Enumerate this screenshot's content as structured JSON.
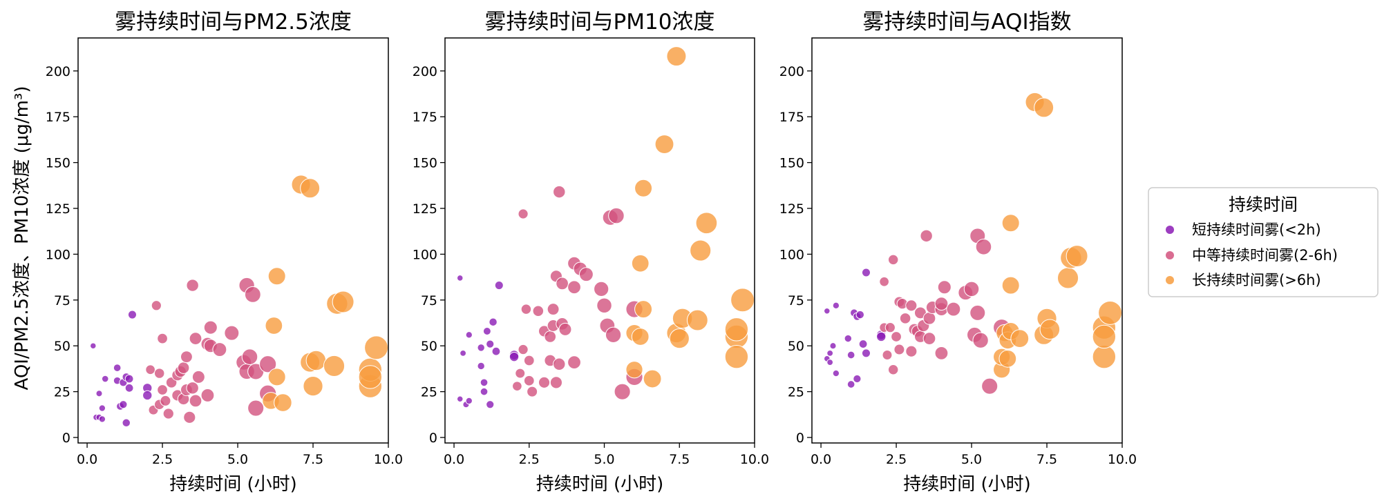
{
  "colors": {
    "short": "#8B1BB5",
    "medium": "#D2527E",
    "long": "#F79C3E"
  },
  "ylabel": "AQI/PM2.5浓度、PM10浓度 (μg/m³)",
  "legend": {
    "title": "持续时间",
    "items": [
      {
        "label": "短持续时间雾(<2h)",
        "color_key": "short"
      },
      {
        "label": "中等持续时间雾(2-6h)",
        "color_key": "medium"
      },
      {
        "label": "长持续时间雾(>6h)",
        "color_key": "long"
      }
    ]
  },
  "chart_data": [
    {
      "type": "scatter",
      "title": "雾持续时间与PM2.5浓度",
      "xlabel": "持续时间 (小时)",
      "xlim": [
        -0.3,
        10.0
      ],
      "ylim": [
        -3,
        218
      ],
      "xticks": [
        "0.0",
        "2.5",
        "5.0",
        "7.5",
        "10.0"
      ],
      "xtick_values": [
        0,
        2.5,
        5,
        7.5,
        10
      ],
      "yticks": [
        "0",
        "25",
        "50",
        "75",
        "100",
        "125",
        "150",
        "175",
        "200"
      ],
      "ytick_values": [
        0,
        25,
        50,
        75,
        100,
        125,
        150,
        175,
        200
      ],
      "series": [
        {
          "name": "短持续时间雾(<2h)",
          "color_key": "short",
          "points": [
            [
              0.2,
              50
            ],
            [
              0.3,
              11
            ],
            [
              0.4,
              11
            ],
            [
              0.4,
              24
            ],
            [
              0.5,
              10
            ],
            [
              0.5,
              16
            ],
            [
              0.6,
              32
            ],
            [
              1.0,
              38
            ],
            [
              1.0,
              31
            ],
            [
              1.1,
              17
            ],
            [
              1.2,
              18
            ],
            [
              1.2,
              30
            ],
            [
              1.3,
              8
            ],
            [
              1.3,
              33
            ],
            [
              1.4,
              32
            ],
            [
              1.4,
              27
            ],
            [
              1.5,
              67
            ],
            [
              2.0,
              27
            ],
            [
              2.0,
              23
            ]
          ]
        },
        {
          "name": "中等持续时间雾(2-6h)",
          "color_key": "medium",
          "points": [
            [
              2.1,
              37
            ],
            [
              2.2,
              15
            ],
            [
              2.3,
              72
            ],
            [
              2.4,
              18
            ],
            [
              2.4,
              35
            ],
            [
              2.5,
              54
            ],
            [
              2.5,
              26
            ],
            [
              2.6,
              20
            ],
            [
              2.7,
              13
            ],
            [
              2.8,
              30
            ],
            [
              3.0,
              23
            ],
            [
              3.0,
              34
            ],
            [
              3.1,
              36
            ],
            [
              3.2,
              21
            ],
            [
              3.2,
              38
            ],
            [
              3.3,
              44
            ],
            [
              3.3,
              26
            ],
            [
              3.4,
              11
            ],
            [
              3.5,
              83
            ],
            [
              3.5,
              27
            ],
            [
              3.6,
              20
            ],
            [
              3.7,
              33
            ],
            [
              3.6,
              54
            ],
            [
              4.0,
              51
            ],
            [
              4.0,
              23
            ],
            [
              4.1,
              60
            ],
            [
              4.1,
              50
            ],
            [
              4.4,
              48
            ],
            [
              4.8,
              57
            ],
            [
              5.2,
              41
            ],
            [
              5.3,
              83
            ],
            [
              5.3,
              36
            ],
            [
              5.4,
              44
            ],
            [
              5.5,
              78
            ],
            [
              5.6,
              16
            ],
            [
              5.6,
              36
            ],
            [
              6.0,
              40
            ],
            [
              6.0,
              24
            ]
          ]
        },
        {
          "name": "长持续时间雾(>6h)",
          "color_key": "long",
          "points": [
            [
              6.1,
              20
            ],
            [
              6.2,
              61
            ],
            [
              6.3,
              88
            ],
            [
              6.3,
              33
            ],
            [
              6.5,
              19
            ],
            [
              7.1,
              138
            ],
            [
              7.4,
              136
            ],
            [
              7.4,
              41
            ],
            [
              7.5,
              28
            ],
            [
              7.6,
              42
            ],
            [
              8.2,
              39
            ],
            [
              8.3,
              73
            ],
            [
              8.5,
              74
            ],
            [
              9.4,
              28
            ],
            [
              9.4,
              37
            ],
            [
              9.4,
              33
            ],
            [
              9.6,
              49
            ]
          ]
        }
      ]
    },
    {
      "type": "scatter",
      "title": "雾持续时间与PM10浓度",
      "xlabel": "持续时间 (小时)",
      "xlim": [
        -0.3,
        10.0
      ],
      "ylim": [
        -3,
        218
      ],
      "xticks": [
        "0.0",
        "2.5",
        "5.0",
        "7.5",
        "10.0"
      ],
      "xtick_values": [
        0,
        2.5,
        5,
        7.5,
        10
      ],
      "yticks": [
        "0",
        "25",
        "50",
        "75",
        "100",
        "125",
        "150",
        "175",
        "200"
      ],
      "ytick_values": [
        0,
        25,
        50,
        75,
        100,
        125,
        150,
        175,
        200
      ],
      "series": [
        {
          "name": "短持续时间雾(<2h)",
          "color_key": "short",
          "points": [
            [
              0.2,
              87
            ],
            [
              0.2,
              21
            ],
            [
              0.3,
              46
            ],
            [
              0.4,
              18
            ],
            [
              0.5,
              56
            ],
            [
              0.5,
              20
            ],
            [
              0.9,
              39
            ],
            [
              0.9,
              49
            ],
            [
              1.0,
              25
            ],
            [
              1.0,
              30
            ],
            [
              1.1,
              58
            ],
            [
              1.2,
              18
            ],
            [
              1.2,
              51
            ],
            [
              1.3,
              63
            ],
            [
              1.4,
              47
            ],
            [
              1.5,
              83
            ],
            [
              2.0,
              45
            ],
            [
              2.0,
              44
            ]
          ]
        },
        {
          "name": "中等持续时间雾(2-6h)",
          "color_key": "medium",
          "points": [
            [
              2.1,
              28
            ],
            [
              2.2,
              35
            ],
            [
              2.3,
              122
            ],
            [
              2.3,
              48
            ],
            [
              2.4,
              70
            ],
            [
              2.5,
              42
            ],
            [
              2.5,
              31
            ],
            [
              2.6,
              25
            ],
            [
              2.8,
              69
            ],
            [
              3.0,
              58
            ],
            [
              3.0,
              30
            ],
            [
              3.2,
              42
            ],
            [
              3.2,
              55
            ],
            [
              3.3,
              61
            ],
            [
              3.3,
              70
            ],
            [
              3.4,
              88
            ],
            [
              3.4,
              30
            ],
            [
              3.5,
              134
            ],
            [
              3.5,
              40
            ],
            [
              3.6,
              62
            ],
            [
              3.6,
              84
            ],
            [
              3.7,
              59
            ],
            [
              4.0,
              95
            ],
            [
              4.0,
              41
            ],
            [
              4.0,
              82
            ],
            [
              4.2,
              92
            ],
            [
              4.4,
              89
            ],
            [
              4.9,
              81
            ],
            [
              5.0,
              72
            ],
            [
              5.1,
              61
            ],
            [
              5.2,
              120
            ],
            [
              5.4,
              121
            ],
            [
              5.3,
              56
            ],
            [
              5.6,
              25
            ],
            [
              6.0,
              70
            ],
            [
              6.0,
              33
            ]
          ]
        },
        {
          "name": "长持续时间雾(>6h)",
          "color_key": "long",
          "points": [
            [
              6.0,
              57
            ],
            [
              6.0,
              37
            ],
            [
              6.2,
              95
            ],
            [
              6.2,
              55
            ],
            [
              6.3,
              136
            ],
            [
              6.3,
              70
            ],
            [
              6.6,
              32
            ],
            [
              7.0,
              160
            ],
            [
              7.4,
              208
            ],
            [
              7.4,
              57
            ],
            [
              7.5,
              54
            ],
            [
              7.6,
              65
            ],
            [
              8.2,
              102
            ],
            [
              8.1,
              64
            ],
            [
              8.4,
              117
            ],
            [
              9.4,
              55
            ],
            [
              9.4,
              44
            ],
            [
              9.4,
              59
            ],
            [
              9.6,
              75
            ]
          ]
        }
      ]
    },
    {
      "type": "scatter",
      "title": "雾持续时间与AQI指数",
      "xlabel": "持续时间 (小时)",
      "xlim": [
        -0.3,
        10.0
      ],
      "ylim": [
        -3,
        218
      ],
      "xticks": [
        "0.0",
        "2.5",
        "5.0",
        "7.5",
        "10.0"
      ],
      "xtick_values": [
        0,
        2.5,
        5,
        7.5,
        10
      ],
      "yticks": [
        "0",
        "25",
        "50",
        "75",
        "100",
        "125",
        "150",
        "175",
        "200"
      ],
      "ytick_values": [
        0,
        25,
        50,
        75,
        100,
        125,
        150,
        175,
        200
      ],
      "series": [
        {
          "name": "短持续时间雾(<2h)",
          "color_key": "short",
          "points": [
            [
              0.2,
              69
            ],
            [
              0.2,
              43
            ],
            [
              0.3,
              46
            ],
            [
              0.3,
              41
            ],
            [
              0.4,
              50
            ],
            [
              0.5,
              35
            ],
            [
              0.5,
              72
            ],
            [
              0.9,
              54
            ],
            [
              1.0,
              29
            ],
            [
              1.0,
              45
            ],
            [
              1.1,
              68
            ],
            [
              1.2,
              66
            ],
            [
              1.2,
              32
            ],
            [
              1.3,
              67
            ],
            [
              1.4,
              51
            ],
            [
              1.5,
              90
            ],
            [
              1.5,
              46
            ],
            [
              2.0,
              56
            ],
            [
              2.0,
              55
            ]
          ]
        },
        {
          "name": "中等持续时间雾(2-6h)",
          "color_key": "medium",
          "points": [
            [
              2.1,
              85
            ],
            [
              2.1,
              60
            ],
            [
              2.2,
              45
            ],
            [
              2.3,
              60
            ],
            [
              2.4,
              97
            ],
            [
              2.4,
              37
            ],
            [
              2.5,
              55
            ],
            [
              2.6,
              74
            ],
            [
              2.6,
              48
            ],
            [
              2.7,
              73
            ],
            [
              2.8,
              65
            ],
            [
              3.0,
              72
            ],
            [
              3.0,
              47
            ],
            [
              3.1,
              59
            ],
            [
              3.2,
              58
            ],
            [
              3.3,
              68
            ],
            [
              3.3,
              55
            ],
            [
              3.4,
              61
            ],
            [
              3.5,
              110
            ],
            [
              3.6,
              65
            ],
            [
              3.6,
              54
            ],
            [
              3.7,
              71
            ],
            [
              4.0,
              70
            ],
            [
              4.0,
              46
            ],
            [
              4.0,
              73
            ],
            [
              4.1,
              82
            ],
            [
              4.4,
              70
            ],
            [
              4.8,
              79
            ],
            [
              5.0,
              81
            ],
            [
              5.1,
              56
            ],
            [
              5.2,
              110
            ],
            [
              5.2,
              68
            ],
            [
              5.3,
              53
            ],
            [
              5.4,
              104
            ],
            [
              5.6,
              28
            ],
            [
              6.0,
              60
            ]
          ]
        },
        {
          "name": "长持续时间雾(>6h)",
          "color_key": "long",
          "points": [
            [
              6.0,
              37
            ],
            [
              6.0,
              44
            ],
            [
              6.1,
              57
            ],
            [
              6.2,
              43
            ],
            [
              6.2,
              53
            ],
            [
              6.3,
              83
            ],
            [
              6.3,
              117
            ],
            [
              6.3,
              58
            ],
            [
              6.6,
              54
            ],
            [
              7.1,
              183
            ],
            [
              7.4,
              180
            ],
            [
              7.4,
              56
            ],
            [
              7.5,
              65
            ],
            [
              7.6,
              59
            ],
            [
              8.2,
              87
            ],
            [
              8.3,
              98
            ],
            [
              8.5,
              99
            ],
            [
              9.4,
              44
            ],
            [
              9.4,
              60
            ],
            [
              9.4,
              55
            ],
            [
              9.6,
              68
            ]
          ]
        }
      ]
    }
  ]
}
